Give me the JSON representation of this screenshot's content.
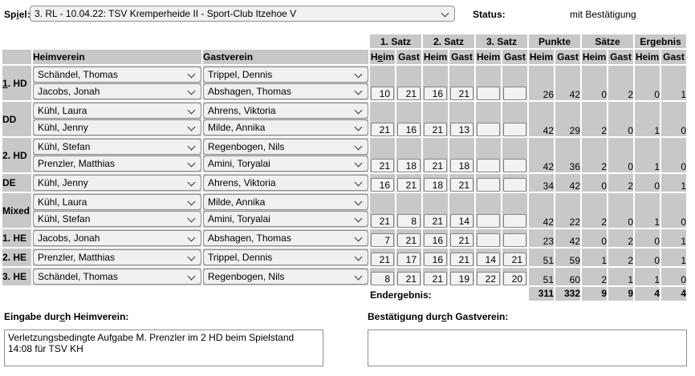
{
  "colors": {
    "cell_gray": "#c8c8c8",
    "control_bg": "#f0f0f0",
    "border_gray": "#8f8f8f"
  },
  "top": {
    "spiel_label": {
      "text": "Spiel:",
      "u_index": 2
    },
    "spiel_value": "3. RL - 10.04.22:  TSV Kremperheide II - Sport-Club Itzehoe V",
    "status_label": "Status:",
    "status_value": "mit Bestätigung"
  },
  "table": {
    "set_headers": [
      "1. Satz",
      "2. Satz",
      "3. Satz",
      "Punkte",
      "Sätze",
      "Ergebnis"
    ],
    "col_heim_first": {
      "text": "Heim",
      "u_index": 1
    },
    "col_heim": "Heim",
    "col_gast": "Gast",
    "heimverein": "Heimverein",
    "gastverein": "Gastverein",
    "rows": [
      {
        "label": "1. HD",
        "label_u": 0,
        "heim": [
          "Schändel, Thomas",
          "Jacobs, Jonah"
        ],
        "gast": [
          "Trippel, Dennis",
          "Abshagen, Thomas"
        ],
        "sets": [
          "10",
          "21",
          "16",
          "21",
          "",
          ""
        ],
        "punkte": [
          "26",
          "42"
        ],
        "saetze": [
          "0",
          "2"
        ],
        "ergebnis": [
          "0",
          "1"
        ]
      },
      {
        "label": "DD",
        "heim": [
          "Kühl, Laura",
          "Kühl, Jenny"
        ],
        "gast": [
          "Ahrens, Viktoria",
          "Milde, Annika"
        ],
        "sets": [
          "21",
          "16",
          "21",
          "13",
          "",
          ""
        ],
        "punkte": [
          "42",
          "29"
        ],
        "saetze": [
          "2",
          "0"
        ],
        "ergebnis": [
          "1",
          "0"
        ]
      },
      {
        "label": "2. HD",
        "heim": [
          "Kühl, Stefan",
          "Prenzler, Matthias"
        ],
        "gast": [
          "Regenbogen, Nils",
          "Amini, Toryalai"
        ],
        "sets": [
          "21",
          "18",
          "21",
          "18",
          "",
          ""
        ],
        "punkte": [
          "42",
          "36"
        ],
        "saetze": [
          "2",
          "0"
        ],
        "ergebnis": [
          "1",
          "0"
        ]
      },
      {
        "label": "DE",
        "heim": [
          "Kühl, Jenny"
        ],
        "gast": [
          "Ahrens, Viktoria"
        ],
        "sets": [
          "16",
          "21",
          "18",
          "21",
          "",
          ""
        ],
        "punkte": [
          "34",
          "42"
        ],
        "saetze": [
          "0",
          "2"
        ],
        "ergebnis": [
          "0",
          "1"
        ]
      },
      {
        "label": "Mixed",
        "heim": [
          "Kühl, Laura",
          "Kühl, Stefan"
        ],
        "gast": [
          "Milde, Annika",
          "Amini, Toryalai"
        ],
        "sets": [
          "21",
          "8",
          "21",
          "14",
          "",
          ""
        ],
        "punkte": [
          "42",
          "22"
        ],
        "saetze": [
          "2",
          "0"
        ],
        "ergebnis": [
          "1",
          "0"
        ]
      },
      {
        "label": "1. HE",
        "heim": [
          "Jacobs, Jonah"
        ],
        "gast": [
          "Abshagen, Thomas"
        ],
        "sets": [
          "7",
          "21",
          "16",
          "21",
          "",
          ""
        ],
        "punkte": [
          "23",
          "42"
        ],
        "saetze": [
          "0",
          "2"
        ],
        "ergebnis": [
          "0",
          "1"
        ]
      },
      {
        "label": "2. HE",
        "heim": [
          "Prenzler, Matthias"
        ],
        "gast": [
          "Trippel, Dennis"
        ],
        "sets": [
          "21",
          "17",
          "16",
          "21",
          "14",
          "21"
        ],
        "punkte": [
          "51",
          "59"
        ],
        "saetze": [
          "1",
          "2"
        ],
        "ergebnis": [
          "0",
          "1"
        ]
      },
      {
        "label": "3. HE",
        "heim": [
          "Schändel, Thomas"
        ],
        "gast": [
          "Regenbogen, Nils"
        ],
        "sets": [
          "8",
          "21",
          "21",
          "19",
          "22",
          "20"
        ],
        "punkte": [
          "51",
          "60"
        ],
        "saetze": [
          "2",
          "1"
        ],
        "ergebnis": [
          "1",
          "0"
        ]
      }
    ],
    "endergebnis_label": "Endergebnis:",
    "endergebnis": {
      "punkte": [
        "311",
        "332"
      ],
      "saetze": [
        "9",
        "9"
      ],
      "ergebnis": [
        "4",
        "4"
      ]
    }
  },
  "bottom": {
    "eingabe_label": {
      "text": "Eingabe durch Heimverein:",
      "u_index": 11
    },
    "eingabe_value": "Verletzungsbedingte Aufgabe M. Prenzler im 2 HD beim Spielstand 14:08 für TSV KH",
    "bestaetigung_label": {
      "text": "Bestätigung durch Gastverein:",
      "u_index": 15
    },
    "bestaetigung_value": ""
  }
}
